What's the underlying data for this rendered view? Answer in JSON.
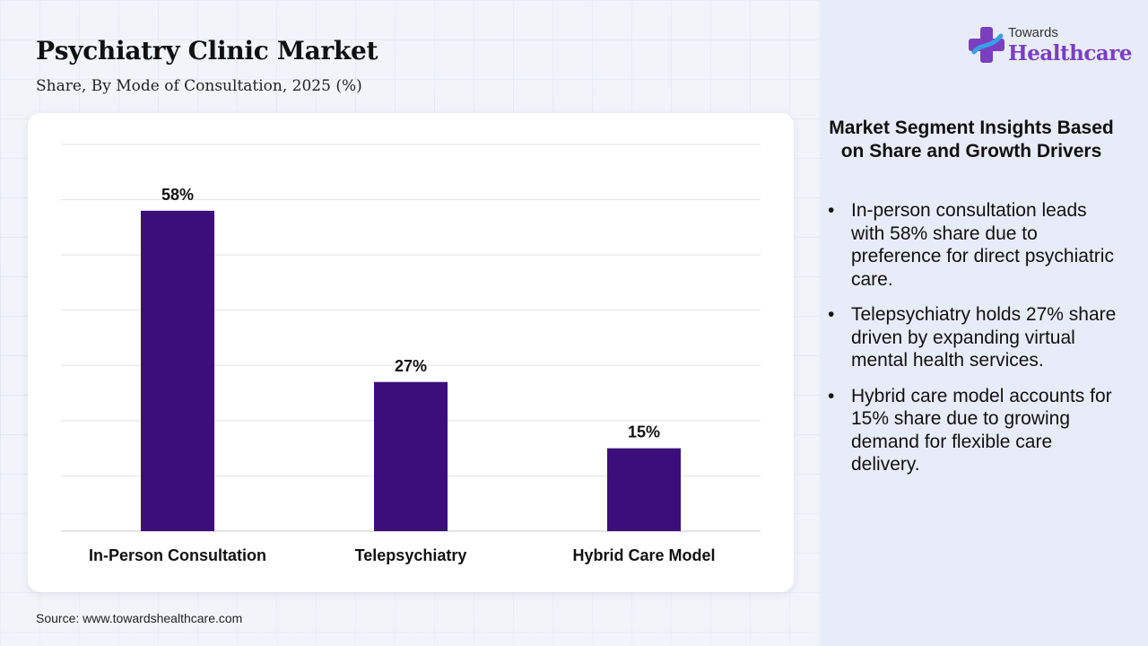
{
  "header": {
    "title": "Psychiatry Clinic Market",
    "subtitle": "Share, By Mode of Consultation, 2025 (%)"
  },
  "brand": {
    "logo_top": "Towards",
    "logo_main": "Healthcare",
    "logo_icon": "plus-cross-icon",
    "colors": {
      "purple": "#7a3fbf",
      "blue": "#3aa0e6"
    }
  },
  "source": "Source: www.towardshealthcare.com",
  "insights": {
    "heading": "Market Segment Insights Based on Share and Growth Drivers",
    "bullets": [
      "In-person consultation leads with 58% share due to preference for direct psychiatric care.",
      "Telepsychiatry holds 27% share driven by expanding virtual mental health services.",
      "Hybrid care model accounts for 15% share due to growing demand for flexible care delivery."
    ]
  },
  "chart_data": {
    "type": "bar",
    "title": "Psychiatry Clinic Market",
    "subtitle": "Share, By Mode of Consultation, 2025 (%)",
    "categories": [
      "In-Person Consultation",
      "Telepsychiatry",
      "Hybrid Care Model"
    ],
    "values": [
      58,
      27,
      15
    ],
    "data_labels": [
      "58%",
      "27%",
      "15%"
    ],
    "ylim": [
      0,
      70
    ],
    "grid": true,
    "bar_color": "#3b0e7a"
  }
}
